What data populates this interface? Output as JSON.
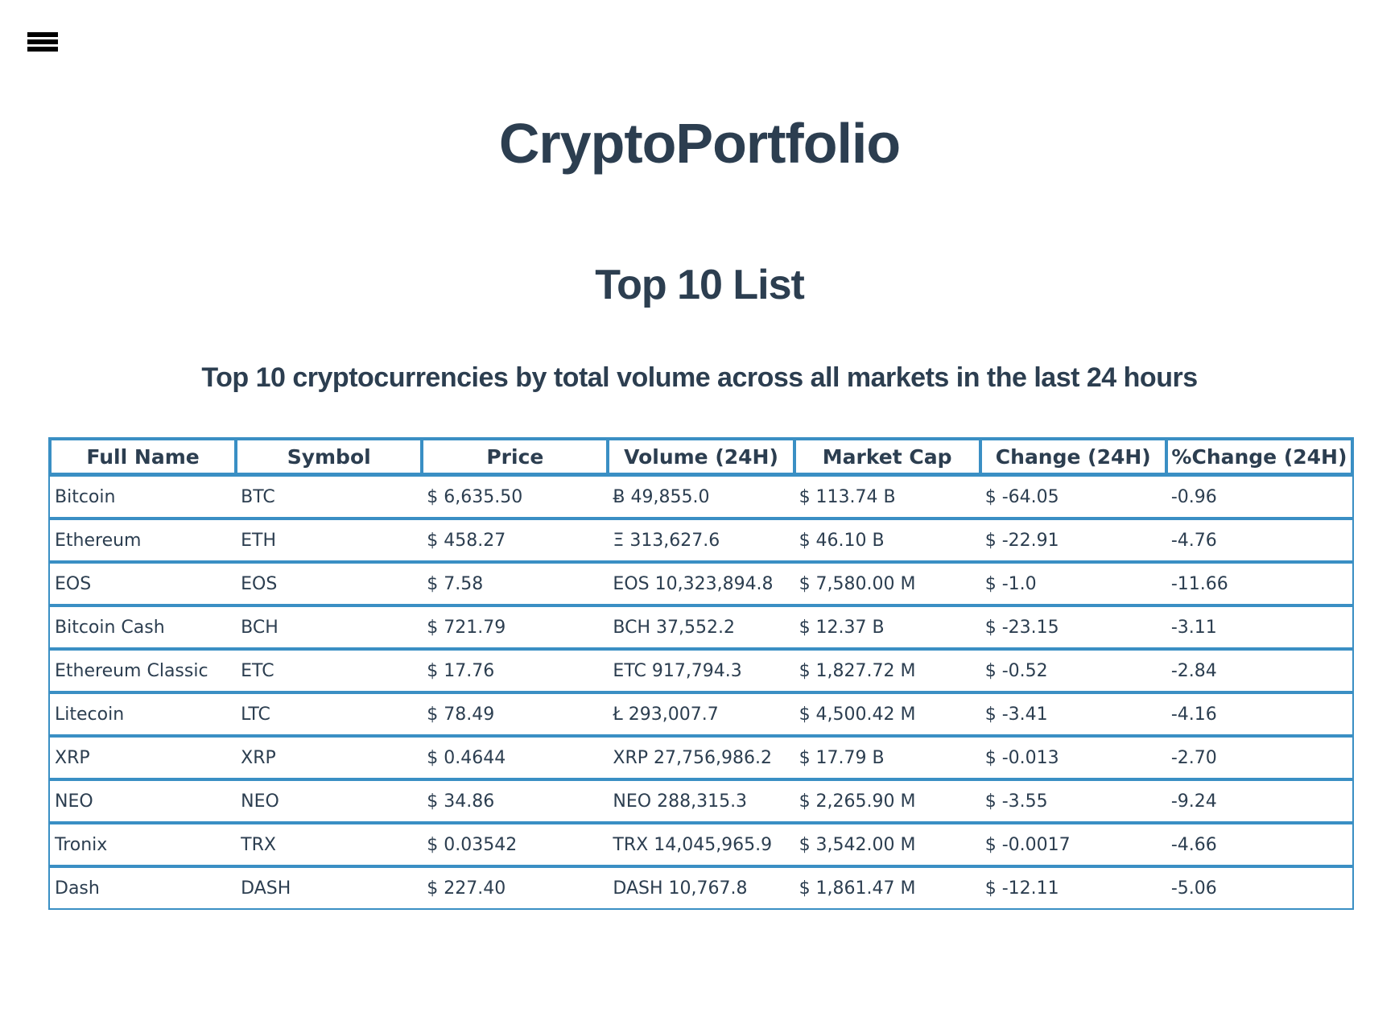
{
  "menu": {
    "icon": "hamburger-menu-icon"
  },
  "header": {
    "site_title": "CryptoPortfolio",
    "section_title": "Top 10 List",
    "subtitle": "Top 10 cryptocurrencies by total volume across all markets in the last 24 hours"
  },
  "table": {
    "columns": [
      "Full Name",
      "Symbol",
      "Price",
      "Volume (24H)",
      "Market Cap",
      "Change (24H)",
      "%Change (24H)"
    ],
    "rows": [
      [
        "Bitcoin",
        "BTC",
        "$ 6,635.50",
        "Ƀ 49,855.0",
        "$ 113.74 B",
        "$ -64.05",
        "-0.96"
      ],
      [
        "Ethereum",
        "ETH",
        "$ 458.27",
        "Ξ 313,627.6",
        "$ 46.10 B",
        "$ -22.91",
        "-4.76"
      ],
      [
        "EOS",
        "EOS",
        "$ 7.58",
        "EOS 10,323,894.8",
        "$ 7,580.00 M",
        "$ -1.0",
        "-11.66"
      ],
      [
        "Bitcoin Cash",
        "BCH",
        "$ 721.79",
        "BCH 37,552.2",
        "$ 12.37 B",
        "$ -23.15",
        "-3.11"
      ],
      [
        "Ethereum Classic",
        "ETC",
        "$ 17.76",
        "ETC 917,794.3",
        "$ 1,827.72 M",
        "$ -0.52",
        "-2.84"
      ],
      [
        "Litecoin",
        "LTC",
        "$ 78.49",
        "Ł 293,007.7",
        "$ 4,500.42 M",
        "$ -3.41",
        "-4.16"
      ],
      [
        "XRP",
        "XRP",
        "$ 0.4644",
        "XRP 27,756,986.2",
        "$ 17.79 B",
        "$ -0.013",
        "-2.70"
      ],
      [
        "NEO",
        "NEO",
        "$ 34.86",
        "NEO 288,315.3",
        "$ 2,265.90 M",
        "$ -3.55",
        "-9.24"
      ],
      [
        "Tronix",
        "TRX",
        "$ 0.03542",
        "TRX 14,045,965.9",
        "$ 3,542.00 M",
        "$ -0.0017",
        "-4.66"
      ],
      [
        "Dash",
        "DASH",
        "$ 227.40",
        "DASH 10,767.8",
        "$ 1,861.47 M",
        "$ -12.11",
        "-5.06"
      ]
    ]
  }
}
